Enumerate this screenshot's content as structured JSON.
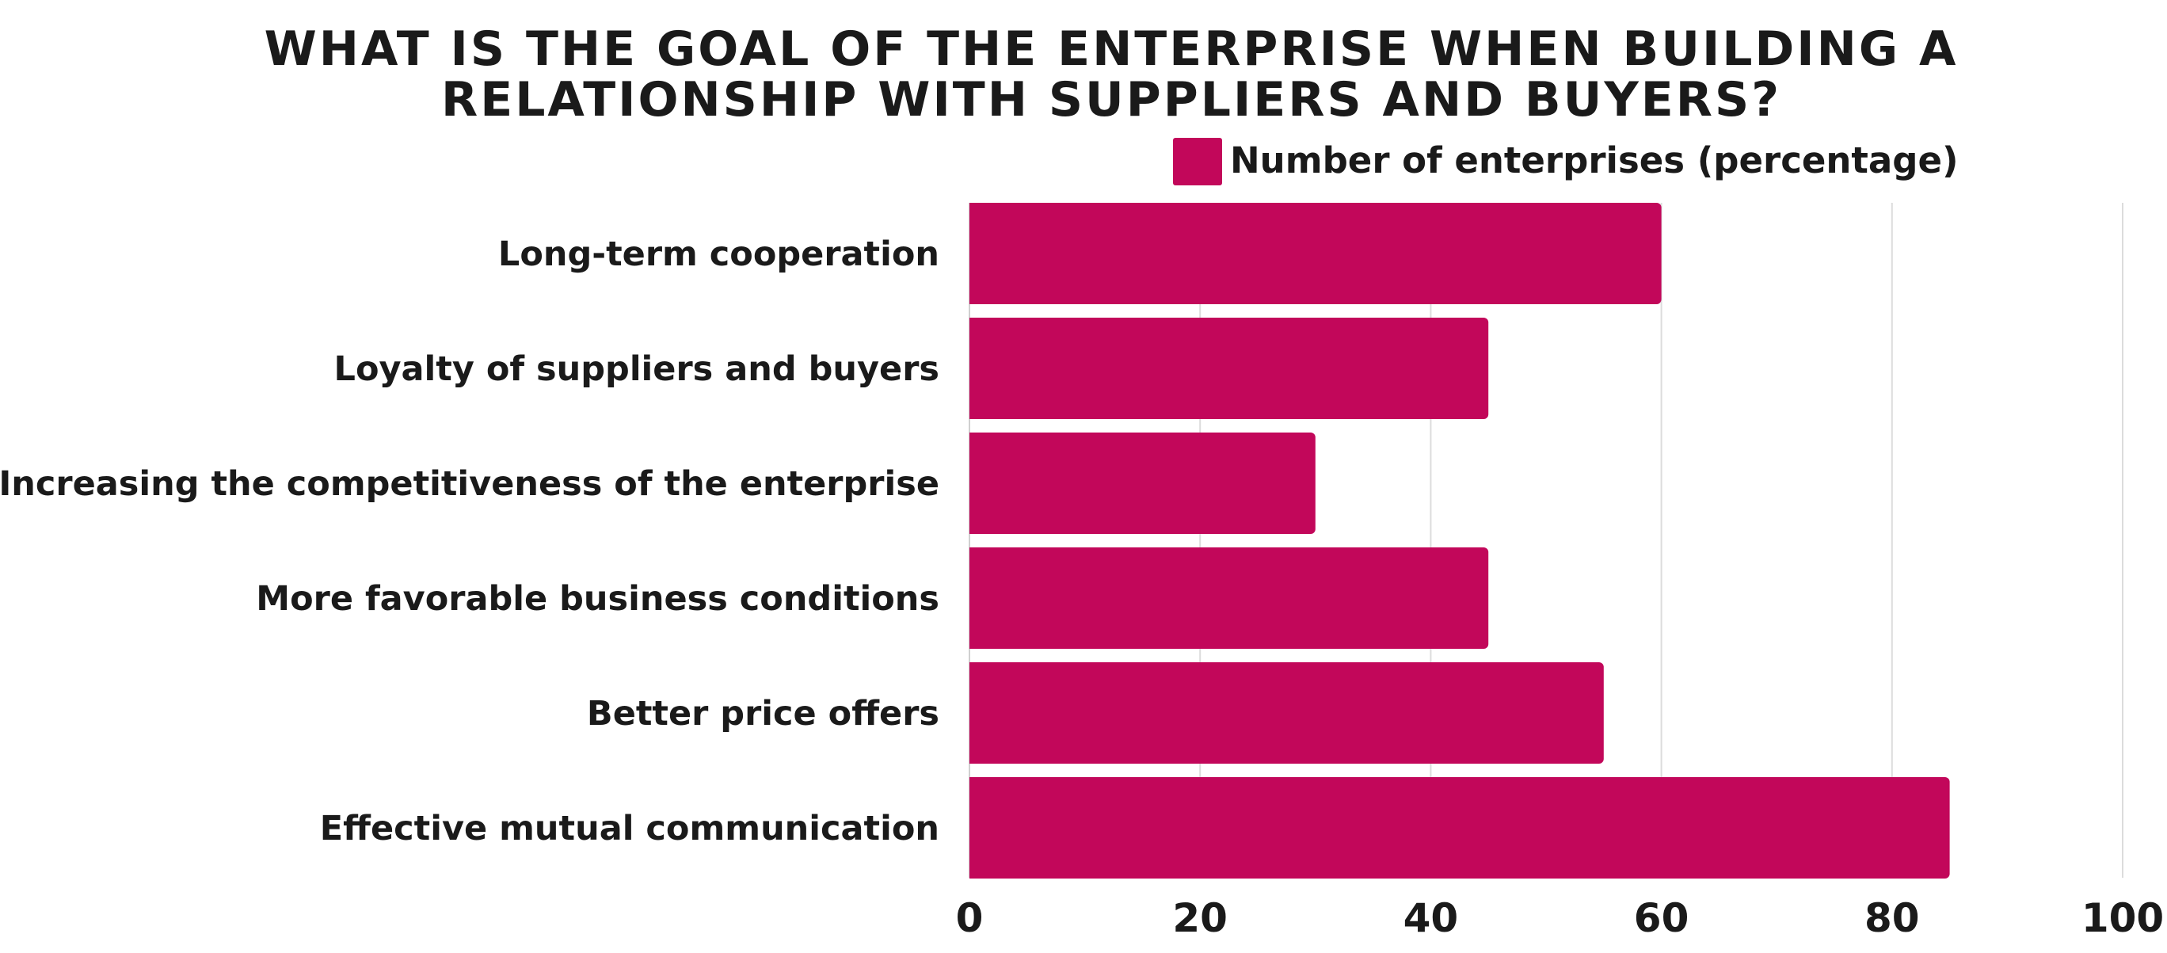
{
  "chart_data": {
    "type": "bar",
    "orientation": "horizontal",
    "title": [
      "WHAT IS THE GOAL OF THE ENTERPRISE WHEN BUILDING A",
      "RELATIONSHIP WITH SUPPLIERS AND BUYERS?"
    ],
    "xlabel": "",
    "ylabel": "",
    "categories": [
      "Long-term cooperation",
      "Loyalty of suppliers and buyers",
      "Increasing the competitiveness of the enterprise",
      "More favorable business conditions",
      "Better price offers",
      "Effective mutual communication"
    ],
    "series": [
      {
        "name": "Number of enterprises (percentage)",
        "color": "#c2075a",
        "values": [
          60,
          45,
          30,
          45,
          55,
          85
        ]
      }
    ],
    "xlim": [
      0,
      100
    ],
    "xticks": [
      0,
      20,
      40,
      60,
      80,
      100
    ],
    "grid": true,
    "legend": "top-right"
  }
}
